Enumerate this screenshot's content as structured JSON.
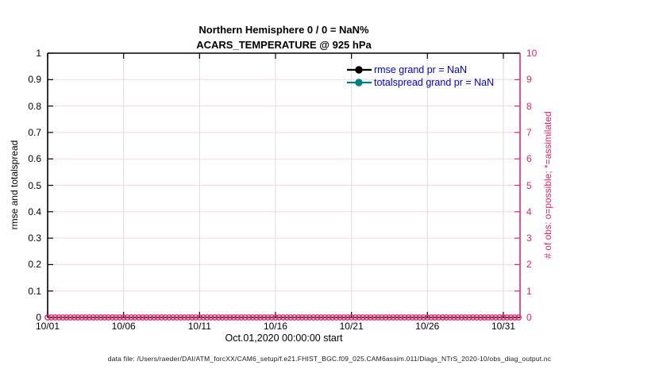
{
  "title": "Northern Hemisphere 0 / 0 = NaN%",
  "subtitle": "ACARS_TEMPERATURE @ 925 hPa",
  "xlabel": "Oct.01,2020 00:00:00 start",
  "ylabel_left": "rmse and totalspread",
  "ylabel_right": "# of obs: o=possible; *=assimilated",
  "footer": {
    "data_file": "data file: /Users/raeder/DAI/ATM_forcXX/CAM6_setup/f.e21.FHIST_BGC.f09_025.CAM6assim.011/Diags_NTrS_2020-10/obs_diag_output.nc"
  },
  "colors": {
    "axis_left": "#000000",
    "axis_right": "#E4276C",
    "grid_horizontal": "#F8D7E1",
    "grid_vertical": "#DBDBDB",
    "legend_text": "#0000EE",
    "rmse": "#000000",
    "totalspread": "#008080",
    "obs_markers": "#E4276C"
  },
  "chart_data": {
    "type": "line",
    "title": "Northern Hemisphere 0 / 0 = NaN%",
    "subtitle": "ACARS_TEMPERATURE @ 925 hPa",
    "xlabel": "Oct.01,2020 00:00:00 start",
    "ylabel_left": "rmse and totalspread",
    "ylabel_right": "# of obs: o=possible; *=assimilated",
    "x_tick_labels": [
      "10/01",
      "10/06",
      "10/11",
      "10/16",
      "10/21",
      "10/26",
      "10/31"
    ],
    "x_tick_days": [
      0,
      5,
      10,
      15,
      20,
      25,
      30
    ],
    "x_range_days": [
      0,
      31.1
    ],
    "ylim_left": [
      0,
      1
    ],
    "y_ticks_left": [
      0,
      0.1,
      0.2,
      0.3,
      0.4,
      0.5,
      0.6,
      0.7,
      0.8,
      0.9,
      1
    ],
    "y_tick_labels_left": [
      "0",
      "0.1",
      "0.2",
      "0.3",
      "0.4",
      "0.5",
      "0.6",
      "0.7",
      "0.8",
      "0.9",
      "1"
    ],
    "ylim_right": [
      0,
      10
    ],
    "y_ticks_right": [
      0,
      1,
      2,
      3,
      4,
      5,
      6,
      7,
      8,
      9,
      10
    ],
    "y_tick_labels_right": [
      "0",
      "1",
      "2",
      "3",
      "4",
      "5",
      "6",
      "7",
      "8",
      "9",
      "10"
    ],
    "grid": true,
    "legend_position": "top-right-inside",
    "series": [
      {
        "name": "rmse",
        "legend": "rmse grand pr = NaN",
        "color": "#000000",
        "marker": "filled-circle",
        "values": [],
        "note": "all values NaN - no curve drawn"
      },
      {
        "name": "totalspread",
        "legend": "totalspread grand pr = NaN",
        "color": "#008080",
        "marker": "filled-circle",
        "values": [],
        "note": "all values NaN - no curve drawn"
      },
      {
        "name": "obs-possible",
        "marker": "o",
        "color": "#E4276C",
        "axis": "right",
        "value_constant": 0,
        "x_start_day": 0,
        "x_end_day": 31,
        "x_step_days": 0.25
      },
      {
        "name": "obs-assimilated",
        "marker": "*",
        "color": "#E4276C",
        "axis": "right",
        "value_constant": 0,
        "x_start_day": 0,
        "x_end_day": 31,
        "x_step_days": 0.25
      }
    ]
  }
}
